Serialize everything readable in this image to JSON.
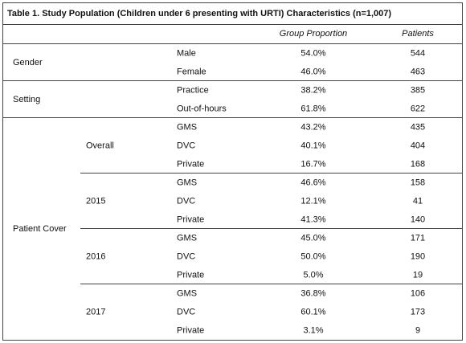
{
  "table": {
    "title": "Table 1. Study Population (Children under 6 presenting with URTI) Characteristics (n=1,007)",
    "columns": [
      "Group Proportion",
      "Patients"
    ],
    "groups": [
      {
        "label": "Gender",
        "rows": [
          {
            "label": "Male",
            "proportion": "54.0%",
            "patients": "544"
          },
          {
            "label": "Female",
            "proportion": "46.0%",
            "patients": "463"
          }
        ]
      },
      {
        "label": "Setting",
        "rows": [
          {
            "label": "Practice",
            "proportion": "38.2%",
            "patients": "385"
          },
          {
            "label": "Out-of-hours",
            "proportion": "61.8%",
            "patients": "622"
          }
        ]
      },
      {
        "label": "Patient Cover",
        "subgroups": [
          {
            "label": "Overall",
            "rows": [
              {
                "label": "GMS",
                "proportion": "43.2%",
                "patients": "435"
              },
              {
                "label": "DVC",
                "proportion": "40.1%",
                "patients": "404"
              },
              {
                "label": "Private",
                "proportion": "16.7%",
                "patients": "168"
              }
            ]
          },
          {
            "label": "2015",
            "rows": [
              {
                "label": "GMS",
                "proportion": "46.6%",
                "patients": "158"
              },
              {
                "label": "DVC",
                "proportion": "12.1%",
                "patients": "41"
              },
              {
                "label": "Private",
                "proportion": "41.3%",
                "patients": "140"
              }
            ]
          },
          {
            "label": "2016",
            "rows": [
              {
                "label": "GMS",
                "proportion": "45.0%",
                "patients": "171"
              },
              {
                "label": "DVC",
                "proportion": "50.0%",
                "patients": "190"
              },
              {
                "label": "Private",
                "proportion": "5.0%",
                "patients": "19"
              }
            ]
          },
          {
            "label": "2017",
            "rows": [
              {
                "label": "GMS",
                "proportion": "36.8%",
                "patients": "106"
              },
              {
                "label": "DVC",
                "proportion": "60.1%",
                "patients": "173"
              },
              {
                "label": "Private",
                "proportion": "3.1%",
                "patients": "9"
              }
            ]
          }
        ]
      }
    ]
  }
}
